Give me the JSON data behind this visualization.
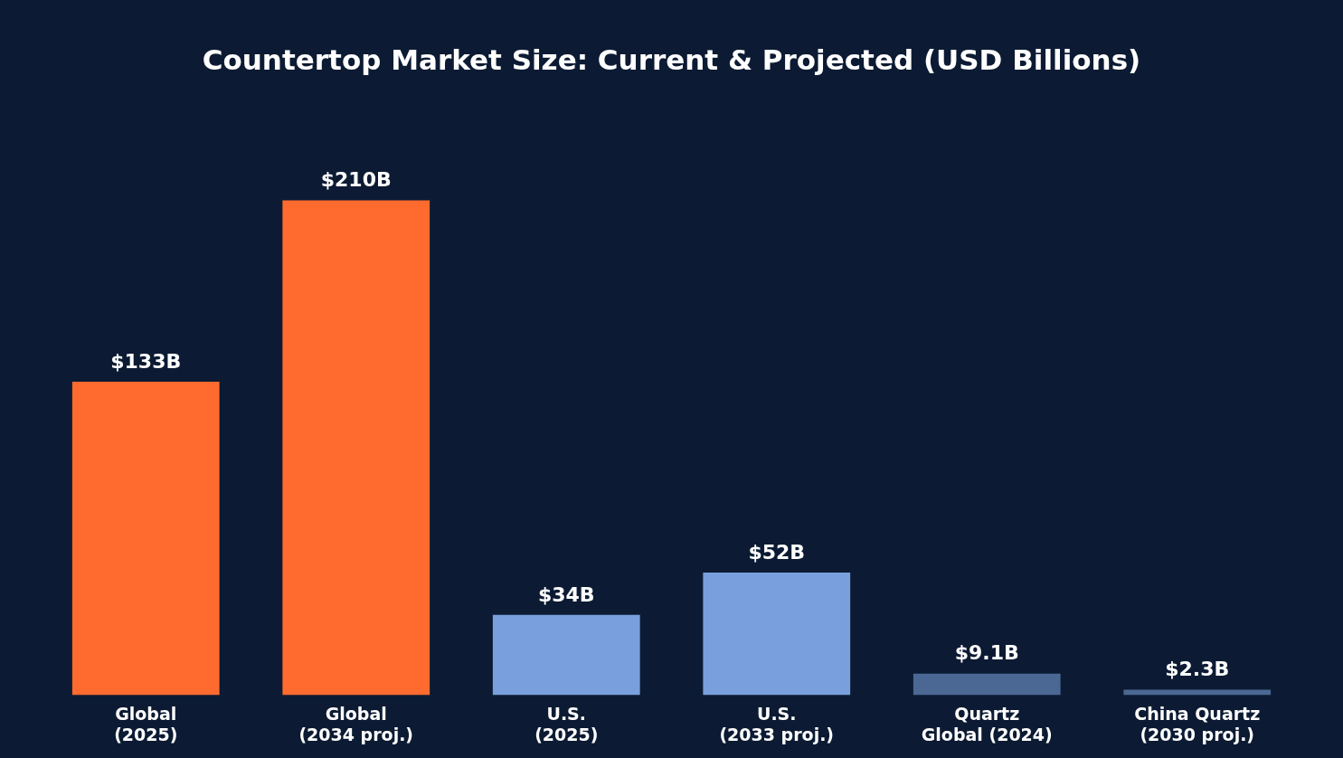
{
  "chart_data": {
    "type": "bar",
    "title": "Countertop Market Size: Current & Projected (USD Billions)",
    "categories": [
      "Global\n(2025)",
      "Global\n(2034 proj.)",
      "U.S.\n(2025)",
      "U.S.\n(2033 proj.)",
      "Quartz\nGlobal (2024)",
      "China Quartz\n(2030 proj.)"
    ],
    "values": [
      133,
      210,
      34,
      52,
      9.1,
      2.3
    ],
    "colors": [
      "#ff6b2e",
      "#ff6b2e",
      "#79a0dc",
      "#79a0dc",
      "#4b6894",
      "#4b6894"
    ],
    "value_labels": [
      "$133B",
      "$210B",
      "$34B",
      "$52B",
      "$9.1B",
      "$2.3B"
    ],
    "tick_labels": "x",
    "grid": false,
    "legend": false
  }
}
